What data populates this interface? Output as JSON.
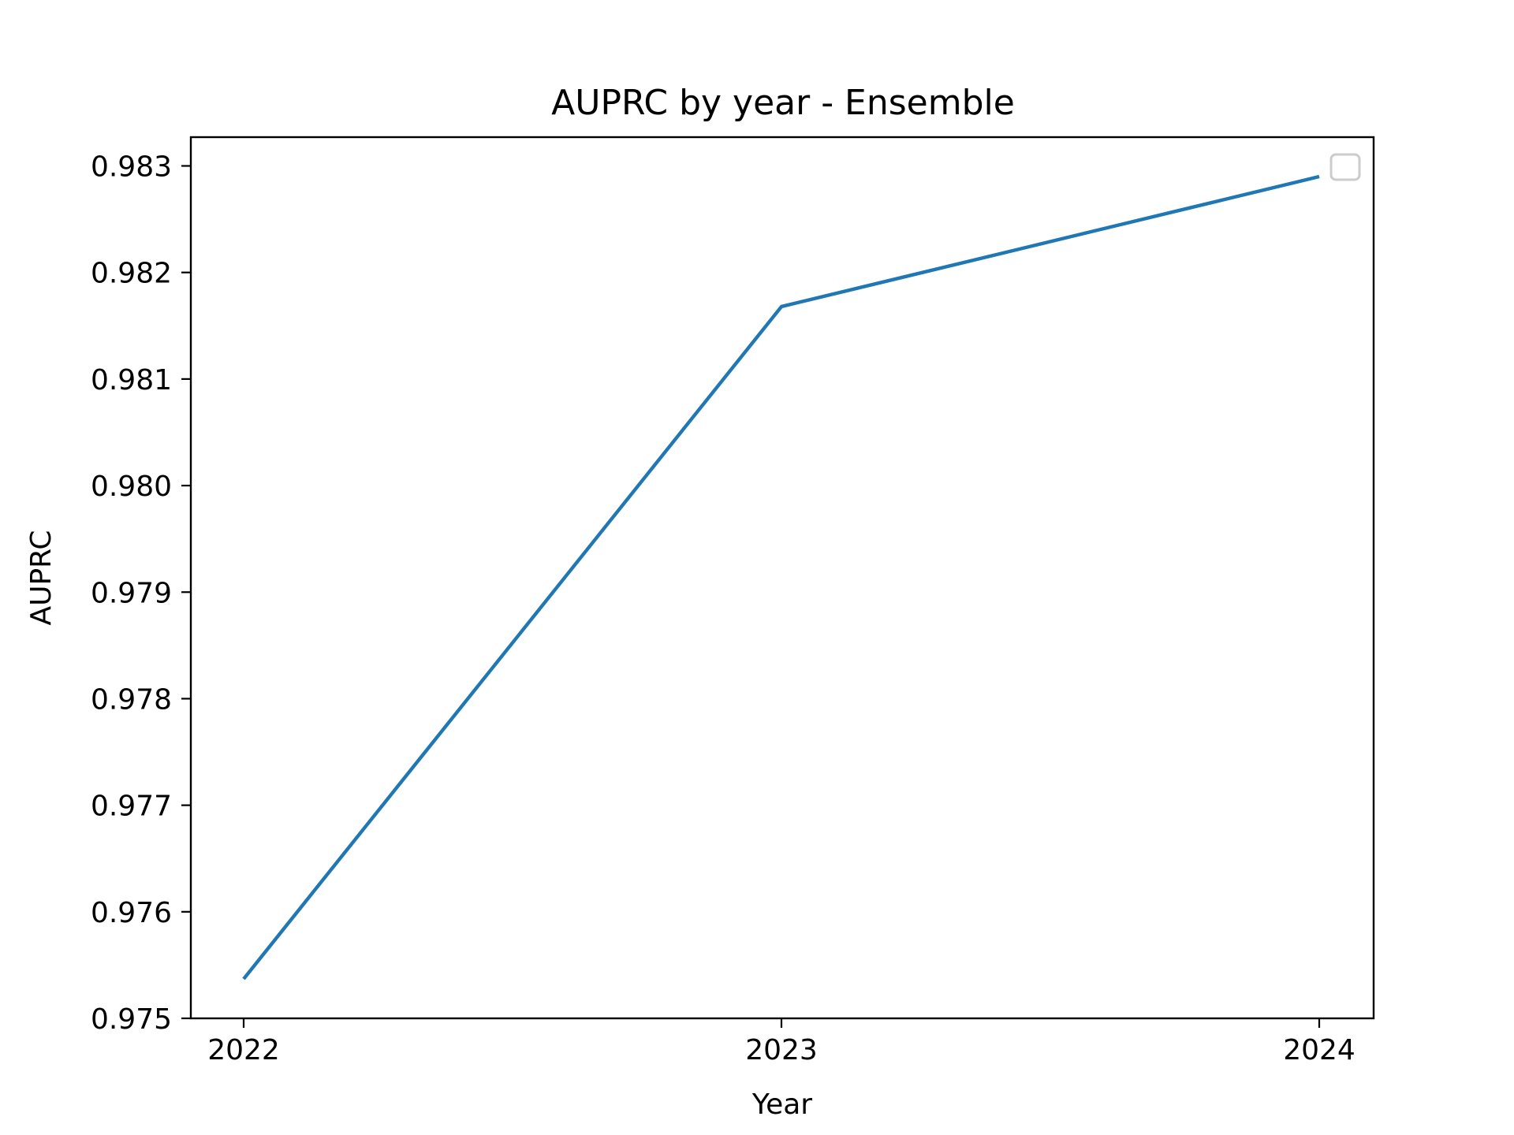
{
  "chart_data": {
    "type": "line",
    "title": "AUPRC by year - Ensemble",
    "xlabel": "Year",
    "ylabel": "AUPRC",
    "x": [
      "2022",
      "2023",
      "2024"
    ],
    "series": [
      {
        "values": [
          0.97537,
          0.98168,
          0.9829
        ],
        "color": "#1f77b4"
      }
    ],
    "xticks": [
      "2022",
      "2023",
      "2024"
    ],
    "yticks": [
      "0.975",
      "0.976",
      "0.977",
      "0.978",
      "0.979",
      "0.980",
      "0.981",
      "0.982",
      "0.983"
    ],
    "ylim": [
      0.975,
      0.98327
    ],
    "grid": false,
    "legend": {
      "placement": "top-right",
      "entries": []
    }
  }
}
